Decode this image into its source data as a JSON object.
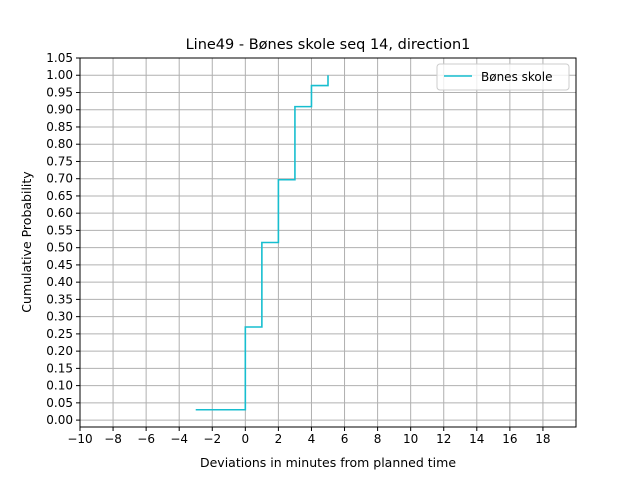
{
  "chart_data": {
    "type": "line",
    "step": true,
    "title": "Line49 - Bønes skole seq 14, direction1",
    "xlabel": "Deviations in minutes from planned time",
    "ylabel": "Cumulative Probability",
    "xlim": [
      -10,
      20
    ],
    "ylim": [
      -0.02,
      1.05
    ],
    "xticks": [
      -10,
      -8,
      -6,
      -4,
      -2,
      0,
      2,
      4,
      6,
      8,
      10,
      12,
      14,
      16,
      18
    ],
    "xtick_labels": [
      "−10",
      "−8",
      "−6",
      "−4",
      "−2",
      "0",
      "2",
      "4",
      "6",
      "8",
      "10",
      "12",
      "14",
      "16",
      "18"
    ],
    "yticks": [
      0.0,
      0.05,
      0.1,
      0.15,
      0.2,
      0.25,
      0.3,
      0.35,
      0.4,
      0.45,
      0.5,
      0.55,
      0.6,
      0.65,
      0.7,
      0.75,
      0.8,
      0.85,
      0.9,
      0.95,
      1.0,
      1.05
    ],
    "ytick_labels": [
      "0.00",
      "0.05",
      "0.10",
      "0.15",
      "0.20",
      "0.25",
      "0.30",
      "0.35",
      "0.40",
      "0.45",
      "0.50",
      "0.55",
      "0.60",
      "0.65",
      "0.70",
      "0.75",
      "0.80",
      "0.85",
      "0.90",
      "0.95",
      "1.00",
      "1.05"
    ],
    "grid": true,
    "legend_position": "top-right",
    "series": [
      {
        "name": "Bønes skole",
        "color": "#17becf",
        "x": [
          -3,
          0,
          0,
          1,
          1,
          2,
          2,
          3,
          3,
          4,
          4,
          5,
          5
        ],
        "y": [
          0.03,
          0.03,
          0.27,
          0.27,
          0.515,
          0.515,
          0.697,
          0.697,
          0.909,
          0.909,
          0.97,
          0.97,
          1.0
        ]
      }
    ]
  }
}
